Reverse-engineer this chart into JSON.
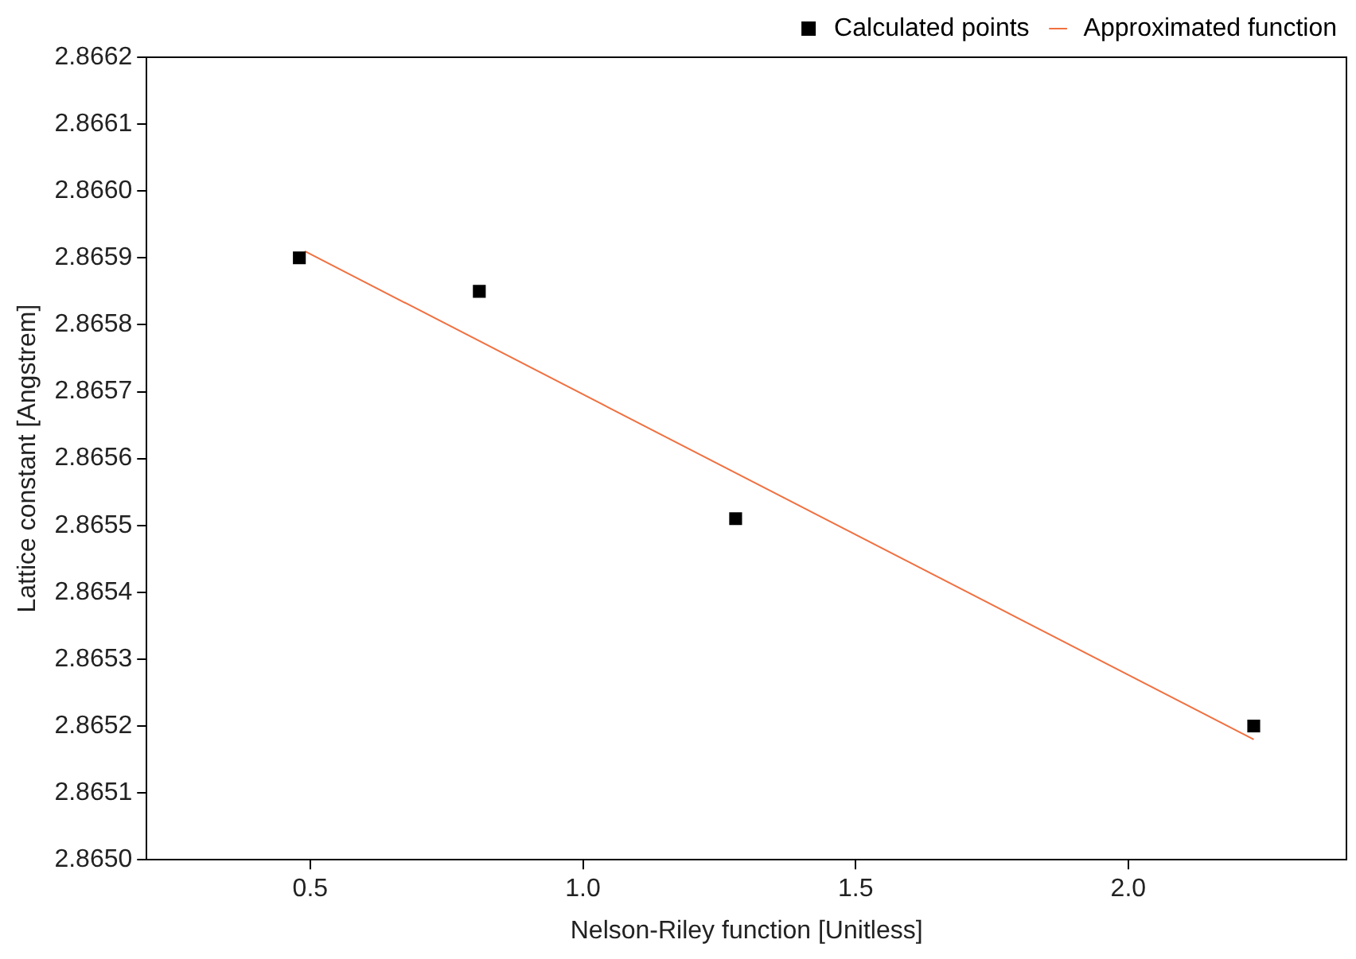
{
  "chart_data": {
    "type": "scatter",
    "xlabel": "Nelson-Riley function [Unitless]",
    "ylabel": "Lattice constant [Angstrem]",
    "series": [
      {
        "name": "Calculated points",
        "type": "scatter",
        "color": "#000000",
        "marker": "square",
        "x": [
          0.48,
          0.81,
          1.28,
          2.23
        ],
        "values": [
          2.8659,
          2.86585,
          2.86551,
          2.8652
        ]
      },
      {
        "name": "Approximated function",
        "type": "line",
        "color": "#f07040",
        "marker": "none",
        "x": [
          0.49,
          2.23
        ],
        "values": [
          2.86591,
          2.86518
        ]
      }
    ],
    "xlim": [
      0.2,
      2.4
    ],
    "xticks": [
      {
        "value": 0.5,
        "label": "0.5"
      },
      {
        "value": 1.0,
        "label": "1.0"
      },
      {
        "value": 1.5,
        "label": "1.5"
      },
      {
        "value": 2.0,
        "label": "2.0"
      }
    ],
    "ylim": [
      2.865,
      2.8662
    ],
    "yticks": [
      {
        "value": 2.865,
        "label": "2.8650"
      },
      {
        "value": 2.8651,
        "label": "2.8651"
      },
      {
        "value": 2.8652,
        "label": "2.8652"
      },
      {
        "value": 2.8653,
        "label": "2.8653"
      },
      {
        "value": 2.8654,
        "label": "2.8654"
      },
      {
        "value": 2.8655,
        "label": "2.8655"
      },
      {
        "value": 2.8656,
        "label": "2.8656"
      },
      {
        "value": 2.8657,
        "label": "2.8657"
      },
      {
        "value": 2.8658,
        "label": "2.8658"
      },
      {
        "value": 2.8659,
        "label": "2.8659"
      },
      {
        "value": 2.866,
        "label": "2.8660"
      },
      {
        "value": 2.8661,
        "label": "2.8661"
      },
      {
        "value": 2.8662,
        "label": "2.8662"
      }
    ],
    "grid": false,
    "legend": "top right"
  }
}
